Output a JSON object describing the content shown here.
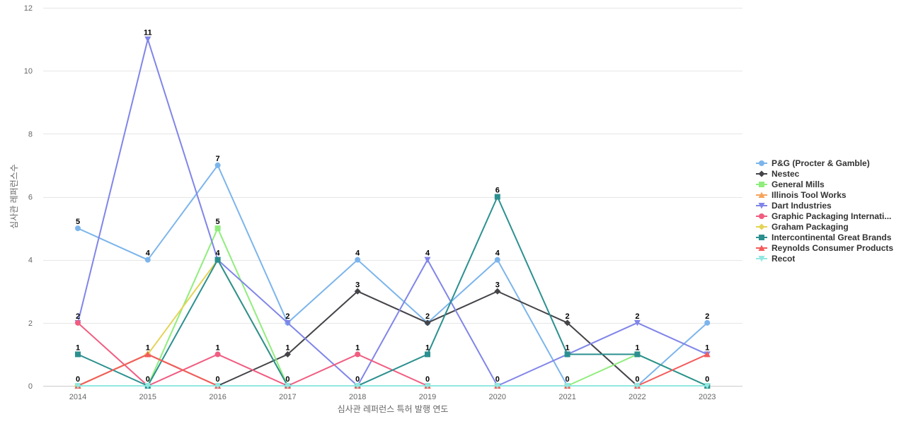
{
  "chart_data": {
    "type": "line",
    "title": "",
    "xlabel": "심사관 레퍼런스 특허 발행 연도",
    "ylabel": "심사관 레퍼런스수",
    "ylim": [
      0,
      12
    ],
    "yticks": [
      0,
      2,
      4,
      6,
      8,
      10,
      12
    ],
    "x": [
      "2014",
      "2015",
      "2016",
      "2017",
      "2018",
      "2019",
      "2020",
      "2021",
      "2022",
      "2023"
    ],
    "grid": true,
    "legend": "right",
    "series": [
      {
        "name": "P&G (Procter & Gamble)",
        "color": "#7cb5ec",
        "marker": "circle",
        "values": [
          5,
          4,
          7,
          2,
          4,
          2,
          4,
          0,
          0,
          2
        ]
      },
      {
        "name": "Nestec",
        "color": "#434348",
        "marker": "diamond",
        "values": [
          0,
          1,
          0,
          1,
          3,
          2,
          3,
          2,
          0,
          0
        ]
      },
      {
        "name": "General Mills",
        "color": "#90ed7d",
        "marker": "square",
        "values": [
          0,
          0,
          5,
          0,
          0,
          0,
          0,
          0,
          1,
          0
        ]
      },
      {
        "name": "Illinois Tool Works",
        "color": "#f7a35c",
        "marker": "triangle",
        "values": [
          0,
          1,
          0,
          0,
          0,
          0,
          0,
          0,
          0,
          0
        ]
      },
      {
        "name": "Dart Industries",
        "color": "#8085e9",
        "marker": "triangle-down",
        "values": [
          2,
          11,
          4,
          2,
          0,
          4,
          0,
          1,
          2,
          1
        ]
      },
      {
        "name": "Graphic Packaging Internati...",
        "color": "#f15c80",
        "marker": "circle",
        "values": [
          2,
          0,
          1,
          0,
          1,
          0,
          0,
          0,
          0,
          0
        ]
      },
      {
        "name": "Graham Packaging",
        "color": "#e4d354",
        "marker": "diamond",
        "values": [
          0,
          1,
          4,
          0,
          0,
          0,
          0,
          0,
          0,
          0
        ]
      },
      {
        "name": "Intercontinental Great Brands",
        "color": "#2b908f",
        "marker": "square",
        "values": [
          1,
          0,
          4,
          0,
          0,
          1,
          6,
          1,
          1,
          0
        ]
      },
      {
        "name": "Reynolds Consumer Products",
        "color": "#f45b5b",
        "marker": "triangle",
        "values": [
          0,
          1,
          0,
          0,
          0,
          0,
          0,
          0,
          0,
          1
        ]
      },
      {
        "name": "Recot",
        "color": "#91e8e1",
        "marker": "triangle-down",
        "values": [
          0,
          0,
          0,
          0,
          0,
          0,
          0,
          0,
          0,
          0
        ]
      }
    ],
    "data_labels": [
      {
        "x": "2014",
        "y": 5,
        "text": "5"
      },
      {
        "x": "2014",
        "y": 2,
        "text": "2"
      },
      {
        "x": "2014",
        "y": 1,
        "text": "1"
      },
      {
        "x": "2014",
        "y": 0,
        "text": "0"
      },
      {
        "x": "2015",
        "y": 11,
        "text": "11"
      },
      {
        "x": "2015",
        "y": 4,
        "text": "4"
      },
      {
        "x": "2015",
        "y": 1,
        "text": "1"
      },
      {
        "x": "2015",
        "y": 0,
        "text": "0"
      },
      {
        "x": "2016",
        "y": 7,
        "text": "7"
      },
      {
        "x": "2016",
        "y": 5,
        "text": "5"
      },
      {
        "x": "2016",
        "y": 4,
        "text": "4"
      },
      {
        "x": "2016",
        "y": 1,
        "text": "1"
      },
      {
        "x": "2016",
        "y": 0,
        "text": "0"
      },
      {
        "x": "2017",
        "y": 2,
        "text": "2"
      },
      {
        "x": "2017",
        "y": 1,
        "text": "1"
      },
      {
        "x": "2017",
        "y": 0,
        "text": "0"
      },
      {
        "x": "2018",
        "y": 4,
        "text": "4"
      },
      {
        "x": "2018",
        "y": 3,
        "text": "3"
      },
      {
        "x": "2018",
        "y": 1,
        "text": "1"
      },
      {
        "x": "2018",
        "y": 0,
        "text": "0"
      },
      {
        "x": "2019",
        "y": 4,
        "text": "4"
      },
      {
        "x": "2019",
        "y": 2,
        "text": "2"
      },
      {
        "x": "2019",
        "y": 1,
        "text": "1"
      },
      {
        "x": "2019",
        "y": 0,
        "text": "0"
      },
      {
        "x": "2020",
        "y": 6,
        "text": "6"
      },
      {
        "x": "2020",
        "y": 4,
        "text": "4"
      },
      {
        "x": "2020",
        "y": 3,
        "text": "3"
      },
      {
        "x": "2020",
        "y": 0,
        "text": "0"
      },
      {
        "x": "2021",
        "y": 2,
        "text": "2"
      },
      {
        "x": "2021",
        "y": 1,
        "text": "1"
      },
      {
        "x": "2021",
        "y": 0,
        "text": "0"
      },
      {
        "x": "2022",
        "y": 2,
        "text": "2"
      },
      {
        "x": "2022",
        "y": 1,
        "text": "1"
      },
      {
        "x": "2022",
        "y": 0,
        "text": "0"
      },
      {
        "x": "2023",
        "y": 2,
        "text": "2"
      },
      {
        "x": "2023",
        "y": 1,
        "text": "1"
      },
      {
        "x": "2023",
        "y": 0,
        "text": "0"
      }
    ]
  }
}
